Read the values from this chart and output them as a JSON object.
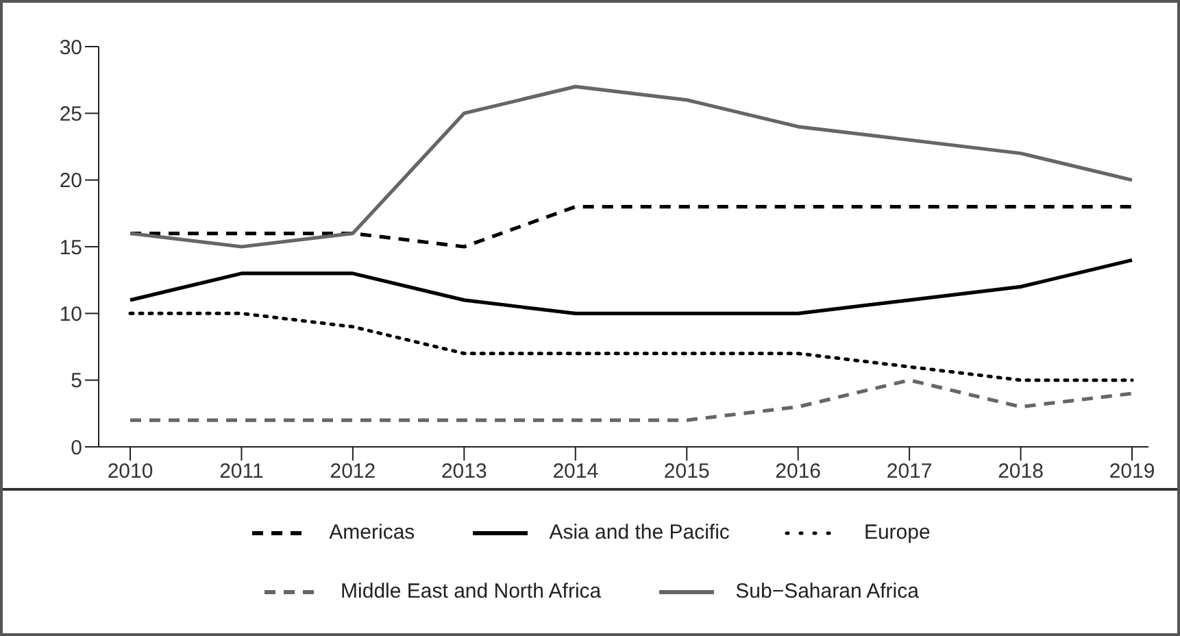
{
  "chart_data": {
    "type": "line",
    "categories": [
      "2010",
      "2011",
      "2012",
      "2013",
      "2014",
      "2015",
      "2016",
      "2017",
      "2018",
      "2019"
    ],
    "series": [
      {
        "name": "Americas",
        "color": "#000000",
        "line_style": "dashed",
        "values": [
          16,
          16,
          16,
          15,
          18,
          18,
          18,
          18,
          18,
          18
        ]
      },
      {
        "name": "Asia and the Pacific",
        "color": "#000000",
        "line_style": "solid",
        "values": [
          11,
          13,
          13,
          11,
          10,
          10,
          10,
          11,
          12,
          14
        ]
      },
      {
        "name": "Europe",
        "color": "#000000",
        "line_style": "dotted",
        "values": [
          10,
          10,
          9,
          7,
          7,
          7,
          7,
          6,
          5,
          5
        ]
      },
      {
        "name": "Middle East and North Africa",
        "color": "#666666",
        "line_style": "dashed",
        "values": [
          2,
          2,
          2,
          2,
          2,
          2,
          3,
          5,
          3,
          4
        ]
      },
      {
        "name": "Sub−Saharan Africa",
        "color": "#666666",
        "line_style": "solid",
        "values": [
          16,
          15,
          16,
          25,
          27,
          26,
          24,
          23,
          22,
          20
        ]
      }
    ],
    "ylim": [
      0,
      30
    ],
    "yticks": [
      0,
      5,
      10,
      15,
      20,
      25,
      30
    ],
    "grid": false,
    "legend": "bottom",
    "marker": "none"
  }
}
